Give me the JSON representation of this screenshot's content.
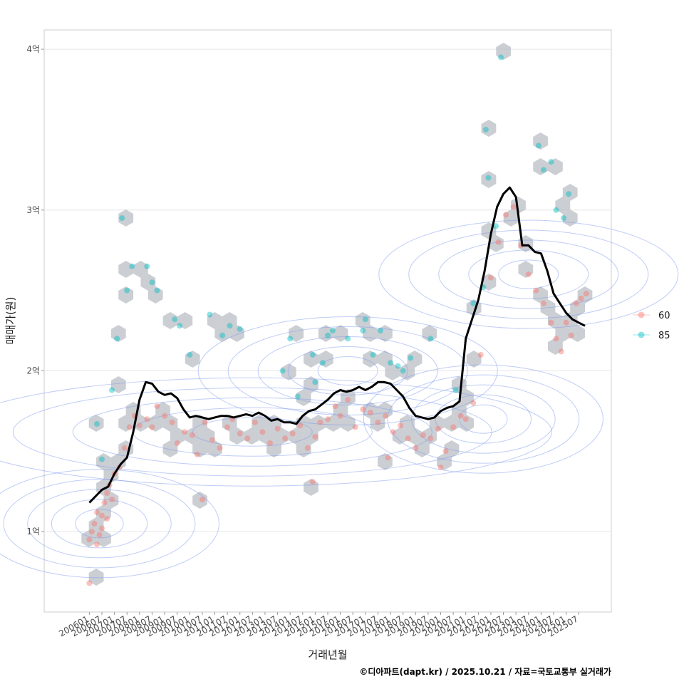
{
  "chart_data": {
    "type": "scatter",
    "title": "",
    "xlabel": "거래년월",
    "ylabel": "매매가(원)",
    "x_ticks": [
      "200601",
      "200607",
      "200701",
      "200707",
      "200801",
      "200807",
      "200901",
      "200907",
      "201001",
      "201007",
      "201101",
      "201107",
      "201201",
      "201207",
      "201301",
      "201307",
      "201401",
      "201407",
      "201501",
      "201507",
      "201601",
      "201607",
      "201701",
      "201707",
      "201801",
      "201807",
      "201901",
      "201907",
      "202001",
      "202007",
      "202101",
      "202107",
      "202201",
      "202207",
      "202301",
      "202307",
      "202401",
      "202407",
      "202501",
      "202507"
    ],
    "y_ticks": [
      {
        "value": 1,
        "label": "1억"
      },
      {
        "value": 2,
        "label": "2억"
      },
      {
        "value": 3,
        "label": "3억"
      },
      {
        "value": 4,
        "label": "4억"
      }
    ],
    "xlim": [
      2004.2,
      2026.8
    ],
    "ylim": [
      0.5,
      4.12
    ],
    "legend": {
      "position": "right",
      "entries": [
        {
          "name": "60",
          "color": "#F8766D"
        },
        {
          "name": "85",
          "color": "#00BFC4"
        }
      ]
    },
    "trend_line": {
      "name": "moving average",
      "points": [
        [
          2006.0,
          1.18
        ],
        [
          2006.25,
          1.22
        ],
        [
          2006.5,
          1.26
        ],
        [
          2006.75,
          1.28
        ],
        [
          2007.0,
          1.36
        ],
        [
          2007.25,
          1.42
        ],
        [
          2007.5,
          1.46
        ],
        [
          2007.75,
          1.62
        ],
        [
          2008.0,
          1.82
        ],
        [
          2008.25,
          1.93
        ],
        [
          2008.5,
          1.92
        ],
        [
          2008.75,
          1.87
        ],
        [
          2009.0,
          1.85
        ],
        [
          2009.25,
          1.86
        ],
        [
          2009.5,
          1.83
        ],
        [
          2009.75,
          1.76
        ],
        [
          2010.0,
          1.71
        ],
        [
          2010.25,
          1.72
        ],
        [
          2010.5,
          1.71
        ],
        [
          2010.75,
          1.7
        ],
        [
          2011.0,
          1.71
        ],
        [
          2011.25,
          1.72
        ],
        [
          2011.5,
          1.72
        ],
        [
          2011.75,
          1.71
        ],
        [
          2012.0,
          1.72
        ],
        [
          2012.25,
          1.73
        ],
        [
          2012.5,
          1.72
        ],
        [
          2012.75,
          1.74
        ],
        [
          2013.0,
          1.72
        ],
        [
          2013.25,
          1.69
        ],
        [
          2013.5,
          1.7
        ],
        [
          2013.75,
          1.68
        ],
        [
          2014.0,
          1.68
        ],
        [
          2014.25,
          1.67
        ],
        [
          2014.5,
          1.72
        ],
        [
          2014.75,
          1.75
        ],
        [
          2015.0,
          1.76
        ],
        [
          2015.25,
          1.79
        ],
        [
          2015.5,
          1.82
        ],
        [
          2015.75,
          1.86
        ],
        [
          2016.0,
          1.88
        ],
        [
          2016.25,
          1.87
        ],
        [
          2016.5,
          1.88
        ],
        [
          2016.75,
          1.9
        ],
        [
          2017.0,
          1.88
        ],
        [
          2017.25,
          1.9
        ],
        [
          2017.5,
          1.93
        ],
        [
          2017.75,
          1.93
        ],
        [
          2018.0,
          1.92
        ],
        [
          2018.25,
          1.88
        ],
        [
          2018.5,
          1.84
        ],
        [
          2018.75,
          1.77
        ],
        [
          2019.0,
          1.72
        ],
        [
          2019.25,
          1.71
        ],
        [
          2019.5,
          1.7
        ],
        [
          2019.75,
          1.71
        ],
        [
          2020.0,
          1.75
        ],
        [
          2020.25,
          1.77
        ],
        [
          2020.5,
          1.78
        ],
        [
          2020.75,
          1.81
        ],
        [
          2021.0,
          2.2
        ],
        [
          2021.25,
          2.32
        ],
        [
          2021.5,
          2.44
        ],
        [
          2021.75,
          2.62
        ],
        [
          2022.0,
          2.85
        ],
        [
          2022.25,
          3.02
        ],
        [
          2022.5,
          3.1
        ],
        [
          2022.75,
          3.14
        ],
        [
          2023.0,
          3.08
        ],
        [
          2023.25,
          2.78
        ],
        [
          2023.5,
          2.78
        ],
        [
          2023.75,
          2.74
        ],
        [
          2024.0,
          2.73
        ],
        [
          2024.25,
          2.62
        ],
        [
          2024.5,
          2.48
        ],
        [
          2024.75,
          2.42
        ],
        [
          2025.0,
          2.36
        ],
        [
          2025.25,
          2.32
        ],
        [
          2025.5,
          2.3
        ],
        [
          2025.75,
          2.28
        ]
      ]
    },
    "series": [
      {
        "name": "60",
        "color": "#F8766D",
        "points": [
          [
            2006.0,
            0.68
          ],
          [
            2006.0,
            0.95
          ],
          [
            2006.1,
            1.0
          ],
          [
            2006.2,
            1.05
          ],
          [
            2006.3,
            1.12
          ],
          [
            2006.4,
            0.98
          ],
          [
            2006.5,
            1.1
          ],
          [
            2006.6,
            1.18
          ],
          [
            2006.7,
            1.24
          ],
          [
            2006.8,
            1.29
          ],
          [
            2006.9,
            1.2
          ],
          [
            2006.5,
            1.02
          ],
          [
            2006.3,
            0.92
          ],
          [
            2006.7,
            1.08
          ],
          [
            2007.0,
            1.36
          ],
          [
            2007.2,
            1.4
          ],
          [
            2007.4,
            1.52
          ],
          [
            2007.6,
            1.65
          ],
          [
            2007.8,
            1.72
          ],
          [
            2008.0,
            1.66
          ],
          [
            2008.3,
            1.7
          ],
          [
            2008.5,
            1.65
          ],
          [
            2008.7,
            1.78
          ],
          [
            2009.0,
            1.72
          ],
          [
            2009.3,
            1.68
          ],
          [
            2009.5,
            1.55
          ],
          [
            2009.8,
            1.62
          ],
          [
            2010.1,
            1.6
          ],
          [
            2010.3,
            1.48
          ],
          [
            2010.6,
            1.68
          ],
          [
            2010.9,
            1.57
          ],
          [
            2011.2,
            1.52
          ],
          [
            2011.5,
            1.65
          ],
          [
            2011.7,
            1.7
          ],
          [
            2012.0,
            1.61
          ],
          [
            2012.3,
            1.58
          ],
          [
            2012.6,
            1.68
          ],
          [
            2012.9,
            1.62
          ],
          [
            2013.2,
            1.55
          ],
          [
            2013.5,
            1.64
          ],
          [
            2013.8,
            1.58
          ],
          [
            2014.1,
            1.61
          ],
          [
            2014.4,
            1.66
          ],
          [
            2014.7,
            1.52
          ],
          [
            2015.0,
            1.59
          ],
          [
            2015.2,
            1.68
          ],
          [
            2015.5,
            1.7
          ],
          [
            2015.8,
            1.78
          ],
          [
            2016.0,
            1.72
          ],
          [
            2016.3,
            1.82
          ],
          [
            2016.6,
            1.65
          ],
          [
            2016.9,
            1.76
          ],
          [
            2017.2,
            1.74
          ],
          [
            2017.5,
            1.68
          ],
          [
            2017.8,
            1.72
          ],
          [
            2018.1,
            1.62
          ],
          [
            2018.4,
            1.66
          ],
          [
            2018.7,
            1.58
          ],
          [
            2019.0,
            1.52
          ],
          [
            2019.3,
            1.6
          ],
          [
            2019.6,
            1.58
          ],
          [
            2019.9,
            1.64
          ],
          [
            2020.2,
            1.5
          ],
          [
            2020.5,
            1.65
          ],
          [
            2020.8,
            1.72
          ],
          [
            2021.0,
            1.7
          ],
          [
            2021.3,
            1.8
          ],
          [
            2021.6,
            2.1
          ],
          [
            2022.0,
            2.58
          ],
          [
            2022.3,
            2.8
          ],
          [
            2022.6,
            2.97
          ],
          [
            2022.9,
            3.02
          ],
          [
            2023.2,
            2.78
          ],
          [
            2023.5,
            2.6
          ],
          [
            2023.8,
            2.5
          ],
          [
            2024.1,
            2.42
          ],
          [
            2024.4,
            2.3
          ],
          [
            2024.6,
            2.2
          ],
          [
            2024.8,
            2.12
          ],
          [
            2025.0,
            2.3
          ],
          [
            2025.2,
            2.22
          ],
          [
            2025.4,
            2.42
          ],
          [
            2025.6,
            2.45
          ],
          [
            2025.8,
            2.48
          ],
          [
            2010.5,
            1.2
          ],
          [
            2014.9,
            1.31
          ],
          [
            2017.9,
            1.46
          ],
          [
            2020.0,
            1.4
          ]
        ]
      },
      {
        "name": "85",
        "color": "#00BFC4",
        "points": [
          [
            2006.3,
            1.67
          ],
          [
            2006.5,
            1.45
          ],
          [
            2006.9,
            1.88
          ],
          [
            2007.1,
            2.2
          ],
          [
            2007.3,
            2.95
          ],
          [
            2007.5,
            2.5
          ],
          [
            2007.7,
            2.65
          ],
          [
            2008.3,
            2.65
          ],
          [
            2008.5,
            2.55
          ],
          [
            2008.7,
            2.5
          ],
          [
            2009.4,
            2.32
          ],
          [
            2009.6,
            2.28
          ],
          [
            2010.0,
            2.1
          ],
          [
            2010.8,
            2.35
          ],
          [
            2011.3,
            2.22
          ],
          [
            2011.6,
            2.28
          ],
          [
            2012.0,
            2.26
          ],
          [
            2013.7,
            2.0
          ],
          [
            2014.0,
            2.2
          ],
          [
            2014.3,
            1.84
          ],
          [
            2014.9,
            2.1
          ],
          [
            2015.3,
            2.05
          ],
          [
            2015.5,
            2.22
          ],
          [
            2015.7,
            2.25
          ],
          [
            2016.3,
            2.2
          ],
          [
            2016.9,
            2.25
          ],
          [
            2017.0,
            2.32
          ],
          [
            2017.3,
            2.1
          ],
          [
            2017.6,
            2.25
          ],
          [
            2018.0,
            2.05
          ],
          [
            2018.3,
            2.03
          ],
          [
            2018.8,
            2.08
          ],
          [
            2019.6,
            2.2
          ],
          [
            2020.6,
            1.88
          ],
          [
            2021.3,
            2.42
          ],
          [
            2021.7,
            2.52
          ],
          [
            2021.8,
            3.5
          ],
          [
            2021.9,
            3.2
          ],
          [
            2022.2,
            2.9
          ],
          [
            2022.4,
            3.95
          ],
          [
            2023.9,
            3.4
          ],
          [
            2024.1,
            3.25
          ],
          [
            2024.4,
            3.3
          ],
          [
            2024.6,
            3.0
          ],
          [
            2024.9,
            2.95
          ],
          [
            2025.1,
            3.1
          ],
          [
            2015.0,
            1.93
          ],
          [
            2018.5,
            2.0
          ]
        ]
      }
    ],
    "density_layers": [
      "hexbin",
      "2d-density contours"
    ]
  },
  "caption": "©디아파트(dapt.kr) / 2025.10.21 / 자료=국토교통부 실거래가"
}
